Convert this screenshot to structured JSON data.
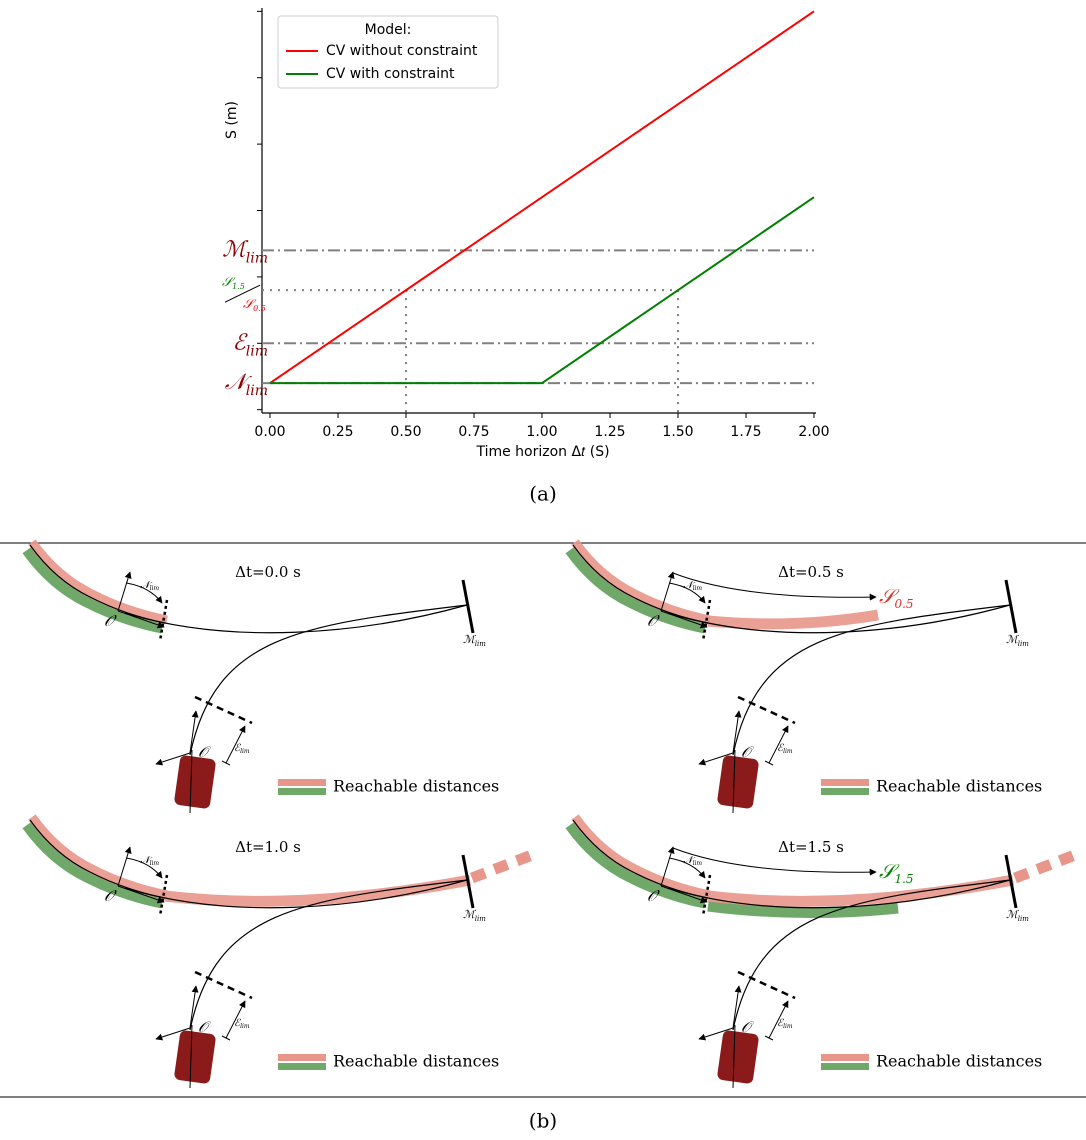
{
  "chart_data": {
    "type": "line",
    "xlabel": "Time horizon Δ𝑡 (S)",
    "ylabel": "S (m)",
    "caption": "(a)",
    "xlim": [
      0,
      2
    ],
    "ylim": [
      -0.05,
      6.05
    ],
    "xticks": [
      {
        "value": 0,
        "label": "0.00"
      },
      {
        "value": 0.25,
        "label": "0.25"
      },
      {
        "value": 0.5,
        "label": "0.50"
      },
      {
        "value": 0.75,
        "label": "0.75"
      },
      {
        "value": 1,
        "label": "1.00"
      },
      {
        "value": 1.25,
        "label": "1.25"
      },
      {
        "value": 1.5,
        "label": "1.50"
      },
      {
        "value": 1.75,
        "label": "1.75"
      },
      {
        "value": 2,
        "label": "2.00"
      }
    ],
    "yticks": [
      {
        "value": 0,
        "label": null
      },
      {
        "value": 1,
        "label": null
      },
      {
        "value": 2,
        "label": null
      },
      {
        "value": 3,
        "label": null
      },
      {
        "value": 4,
        "label": null
      },
      {
        "value": 5,
        "label": null
      },
      {
        "value": 6,
        "label": null
      }
    ],
    "legend": {
      "title": "Model:",
      "corner": "upper left"
    },
    "series": [
      {
        "name": "CV without constraint",
        "color": "#ff0000",
        "x": [
          0,
          2
        ],
        "values": [
          0.4,
          6.0
        ]
      },
      {
        "name": "CV with constraint",
        "color": "#008000",
        "x": [
          0,
          1,
          2
        ],
        "values": [
          0.4,
          0.4,
          3.2
        ]
      }
    ],
    "reference_lines": [
      {
        "value": 0.4,
        "symbol": "𝒩",
        "sub": "lim"
      },
      {
        "value": 1.0,
        "symbol": "ℰ",
        "sub": "lim"
      },
      {
        "value": 2.4,
        "symbol": "ℳ",
        "sub": "lim"
      }
    ],
    "label_color": "#8b0000",
    "reachable_level": {
      "value": 1.8,
      "x": [
        0.5,
        1.5
      ],
      "labels": [
        {
          "symbol": "𝒮",
          "sub": "1.5",
          "color": "#008000"
        },
        {
          "symbol": "𝒮",
          "sub": "0.5",
          "color": "#ff0000"
        }
      ]
    }
  },
  "figure_b": {
    "caption": "(b)",
    "panels": [
      {
        "title": "Δt=0.0 s",
        "n_lim": {
          "symbol": "𝒩",
          "sub": "lim"
        },
        "m_lim": {
          "symbol": "ℳ",
          "sub": "lim"
        },
        "e_lim": {
          "symbol": "ℰ",
          "sub": "lim"
        },
        "o": "𝒪",
        "o_prime": "𝒪'",
        "legend": "Reachable distances"
      },
      {
        "title": "Δt=0.5 s",
        "n_lim": {
          "symbol": "𝒩",
          "sub": "lim"
        },
        "m_lim": {
          "symbol": "ℳ",
          "sub": "lim"
        },
        "e_lim": {
          "symbol": "ℰ",
          "sub": "lim"
        },
        "o": "𝒪",
        "o_prime": "𝒪'",
        "legend": "Reachable distances",
        "annotation": {
          "symbol": "𝒮",
          "sub": "0.5",
          "color": "#e0302a"
        }
      },
      {
        "title": "Δt=1.0 s",
        "n_lim": {
          "symbol": "𝒩",
          "sub": "lim"
        },
        "m_lim": {
          "symbol": "ℳ",
          "sub": "lim"
        },
        "e_lim": {
          "symbol": "ℰ",
          "sub": "lim"
        },
        "o": "𝒪",
        "o_prime": "𝒪'",
        "legend": "Reachable distances"
      },
      {
        "title": "Δt=1.5 s",
        "n_lim": {
          "symbol": "𝒩",
          "sub": "lim"
        },
        "m_lim": {
          "symbol": "ℳ",
          "sub": "lim"
        },
        "e_lim": {
          "symbol": "ℰ",
          "sub": "lim"
        },
        "o": "𝒪",
        "o_prime": "𝒪'",
        "legend": "Reachable distances",
        "annotation": {
          "symbol": "𝒮",
          "sub": "1.5",
          "color": "#008000"
        }
      }
    ]
  }
}
